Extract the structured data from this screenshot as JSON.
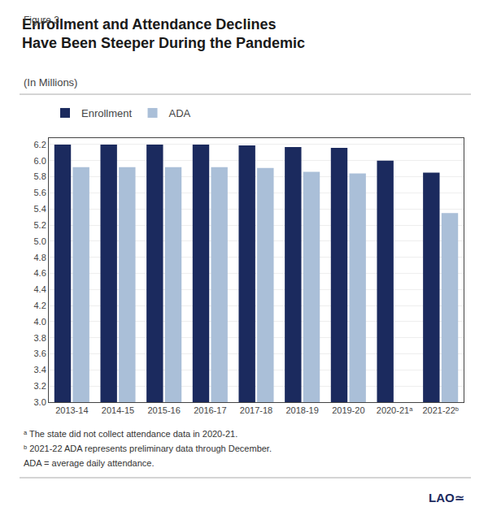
{
  "chart_data": {
    "type": "bar",
    "title": "Enrollment and Attendance Declines\nHave Been Steeper During the Pandemic",
    "subtitle": "(In Millions)",
    "annotations": [
      "Figure 3",
      "ᵃ The state did not collect attendance data in 2020-21.",
      "ᵇ 2021-22 ADA represents preliminary data through December.",
      "ADA = average daily attendance.",
      "LAO≃"
    ],
    "categories": [
      "2013-14",
      "2014-15",
      "2015-16",
      "2016-17",
      "2017-18",
      "2018-19",
      "2019-20",
      "2020-21ᵃ",
      "2021-22ᵇ"
    ],
    "series": [
      {
        "name": "Enrollment",
        "color": "#1b2a5e",
        "values": [
          6.2,
          6.2,
          6.2,
          6.2,
          6.19,
          6.17,
          6.16,
          6.0,
          5.85
        ]
      },
      {
        "name": "ADA",
        "color": "#aabfd8",
        "values": [
          5.92,
          5.92,
          5.92,
          5.92,
          5.91,
          5.86,
          5.84,
          null,
          5.35
        ]
      }
    ],
    "ylim": [
      3.0,
      6.28
    ],
    "yticks": [
      {
        "value": 3,
        "label": "3.0"
      },
      3.2,
      3.4,
      3.6,
      3.8,
      {
        "value": 4,
        "label": "4.0"
      },
      4.2,
      4.4,
      4.6,
      4.8,
      {
        "value": 5,
        "label": "5.0"
      },
      5.2,
      5.4,
      5.6,
      5.8,
      {
        "value": 6,
        "label": "6.0"
      },
      6.2
    ],
    "grid": true,
    "legend": "top left"
  }
}
